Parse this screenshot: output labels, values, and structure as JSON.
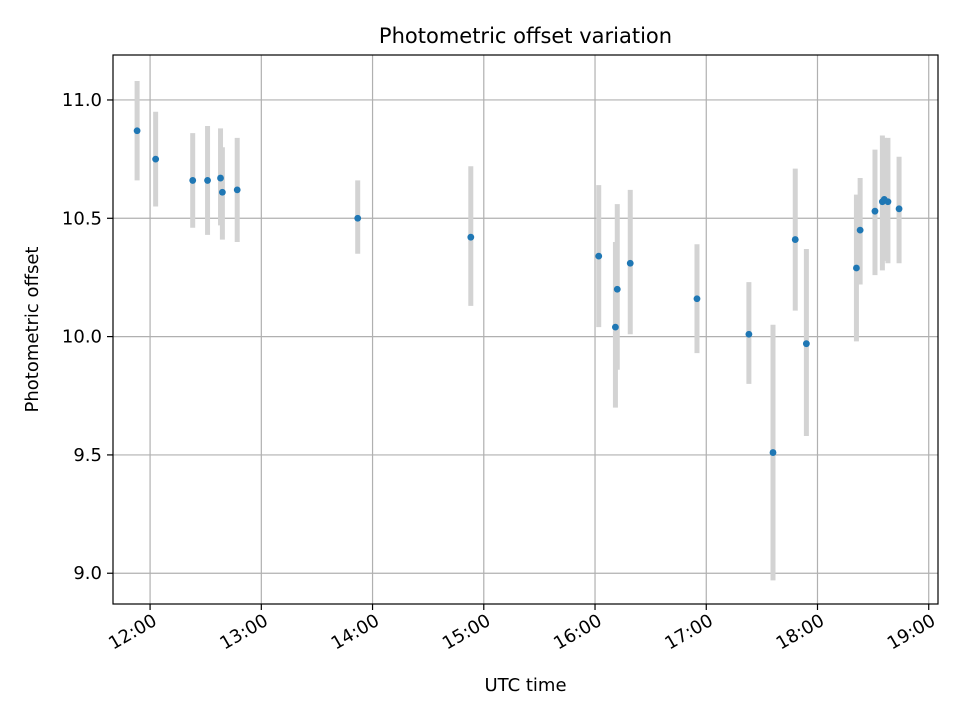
{
  "chart_data": {
    "type": "scatter",
    "title": "Photometric offset variation",
    "xlabel": "UTC time",
    "ylabel": "Photometric offset",
    "xlim": [
      "11:40",
      "19:05"
    ],
    "ylim": [
      8.87,
      11.19
    ],
    "x_ticks": [
      "12:00",
      "13:00",
      "14:00",
      "15:00",
      "16:00",
      "17:00",
      "18:00",
      "19:00"
    ],
    "y_ticks": [
      9.0,
      9.5,
      10.0,
      10.5,
      11.0
    ],
    "y_tick_labels": [
      "9.0",
      "9.5",
      "10.0",
      "10.5",
      "11.0"
    ],
    "grid": true,
    "marker_color": "#1f77b4",
    "errorbar_color": "#d3d3d3",
    "points": [
      {
        "x": "11:53",
        "y": 10.87,
        "lo": 10.66,
        "hi": 11.08
      },
      {
        "x": "12:03",
        "y": 10.75,
        "lo": 10.55,
        "hi": 10.95
      },
      {
        "x": "12:23",
        "y": 10.66,
        "lo": 10.46,
        "hi": 10.86
      },
      {
        "x": "12:31",
        "y": 10.66,
        "lo": 10.43,
        "hi": 10.89
      },
      {
        "x": "12:38",
        "y": 10.67,
        "lo": 10.47,
        "hi": 10.88
      },
      {
        "x": "12:39",
        "y": 10.61,
        "lo": 10.41,
        "hi": 10.8
      },
      {
        "x": "12:47",
        "y": 10.62,
        "lo": 10.4,
        "hi": 10.84
      },
      {
        "x": "13:52",
        "y": 10.5,
        "lo": 10.35,
        "hi": 10.66
      },
      {
        "x": "14:53",
        "y": 10.42,
        "lo": 10.13,
        "hi": 10.72
      },
      {
        "x": "16:02",
        "y": 10.34,
        "lo": 10.04,
        "hi": 10.64
      },
      {
        "x": "16:11",
        "y": 10.04,
        "lo": 9.7,
        "hi": 10.4
      },
      {
        "x": "16:12",
        "y": 10.2,
        "lo": 9.86,
        "hi": 10.56
      },
      {
        "x": "16:19",
        "y": 10.31,
        "lo": 10.01,
        "hi": 10.62
      },
      {
        "x": "16:55",
        "y": 10.16,
        "lo": 9.93,
        "hi": 10.39
      },
      {
        "x": "17:23",
        "y": 10.01,
        "lo": 9.8,
        "hi": 10.23
      },
      {
        "x": "17:36",
        "y": 9.51,
        "lo": 8.97,
        "hi": 10.05
      },
      {
        "x": "17:48",
        "y": 10.41,
        "lo": 10.11,
        "hi": 10.71
      },
      {
        "x": "17:54",
        "y": 9.97,
        "lo": 9.58,
        "hi": 10.37
      },
      {
        "x": "18:21",
        "y": 10.29,
        "lo": 9.98,
        "hi": 10.6
      },
      {
        "x": "18:23",
        "y": 10.45,
        "lo": 10.22,
        "hi": 10.67
      },
      {
        "x": "18:31",
        "y": 10.53,
        "lo": 10.26,
        "hi": 10.79
      },
      {
        "x": "18:35",
        "y": 10.57,
        "lo": 10.28,
        "hi": 10.85
      },
      {
        "x": "18:36",
        "y": 10.58,
        "lo": 10.32,
        "hi": 10.84
      },
      {
        "x": "18:38",
        "y": 10.57,
        "lo": 10.31,
        "hi": 10.84
      },
      {
        "x": "18:44",
        "y": 10.54,
        "lo": 10.31,
        "hi": 10.76
      }
    ]
  }
}
